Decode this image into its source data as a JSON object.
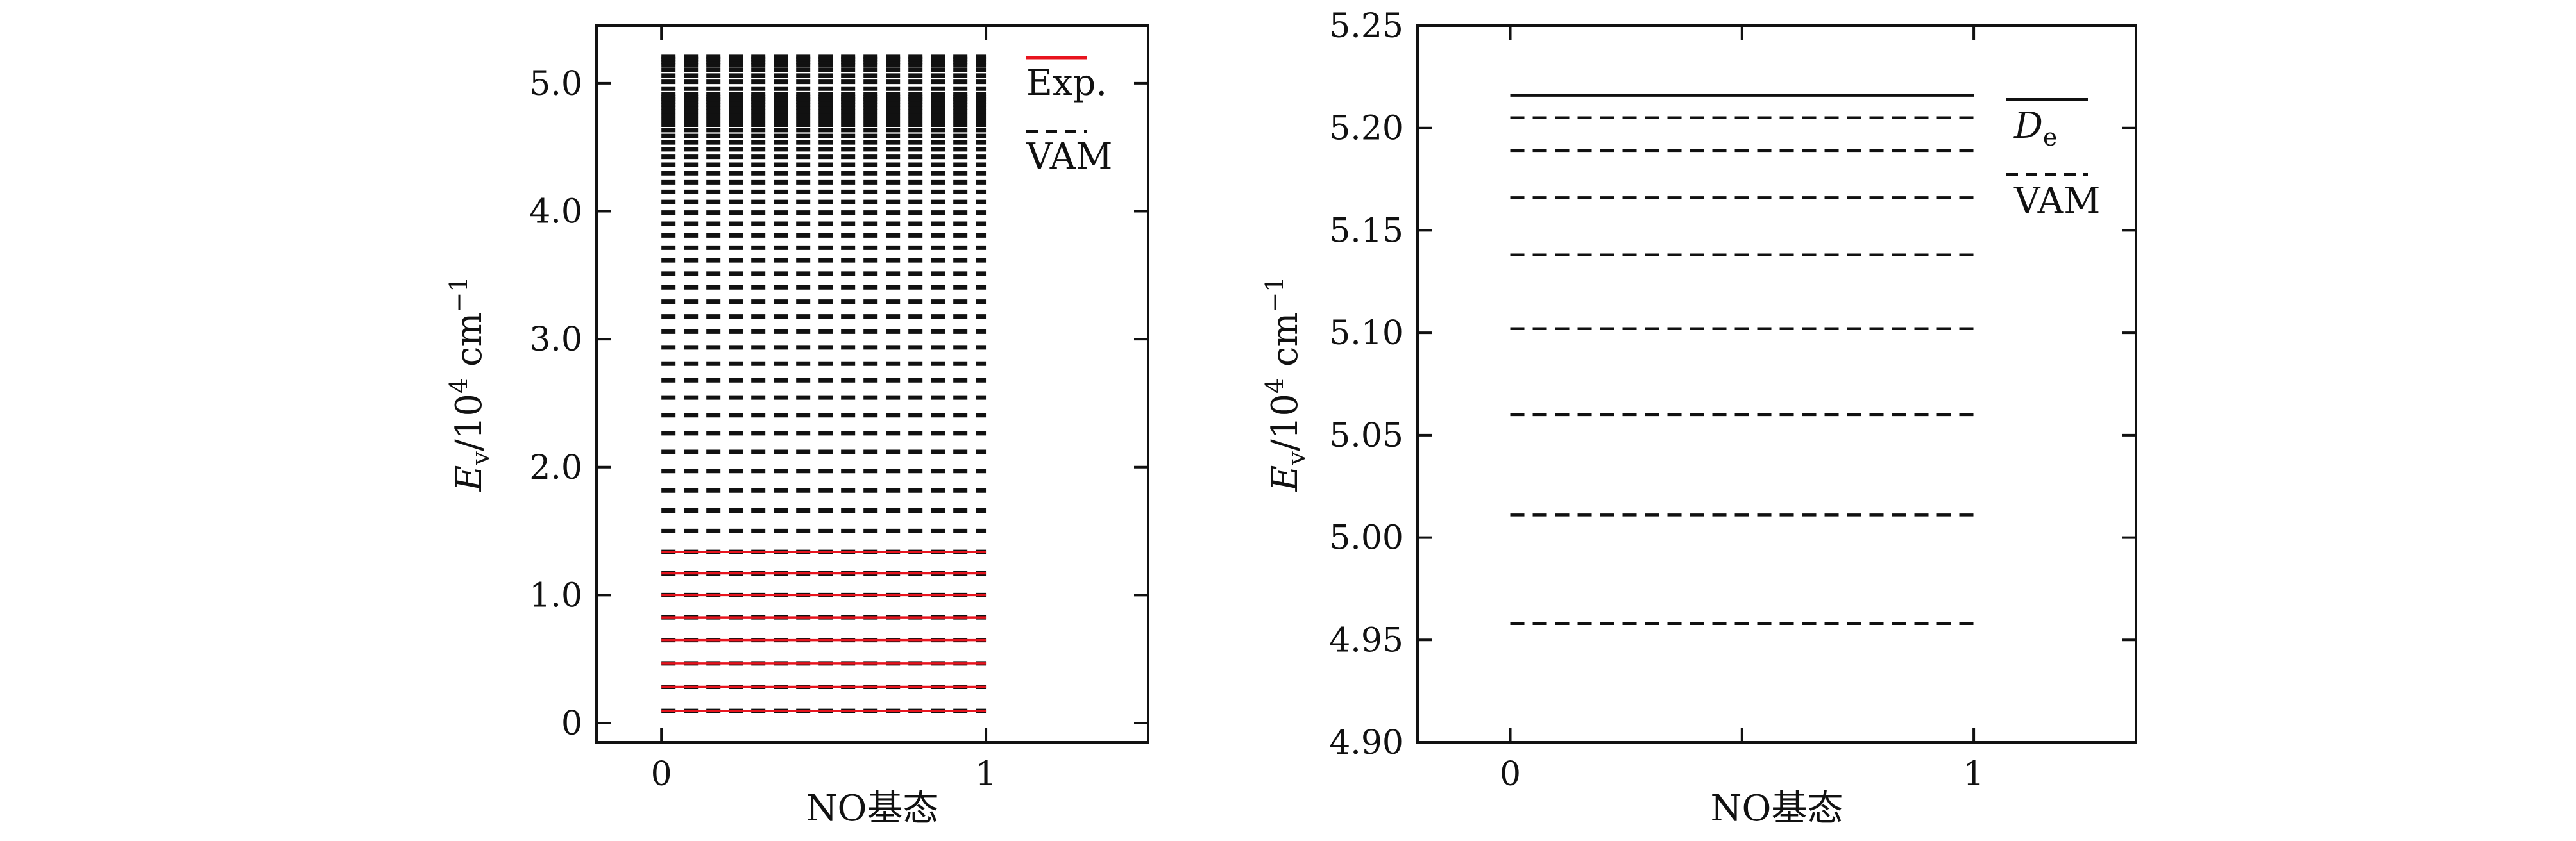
{
  "chart_data": [
    {
      "type": "line",
      "xlabel": "NO基态",
      "ylabel": "Ev/10^4 cm^-1",
      "ylabel_parts": {
        "E": "E",
        "sub": "v",
        "mid": "/10",
        "exp": "4",
        "unit": " cm",
        "unit_exp": "−1"
      },
      "xlim": [
        -0.2,
        1.5
      ],
      "ylim": [
        -0.15,
        5.45
      ],
      "xticks": [
        0,
        1
      ],
      "xtick_labels": [
        "0",
        "1"
      ],
      "yticks": [
        0,
        1,
        2,
        3,
        4,
        5
      ],
      "ytick_labels": [
        "0",
        "1.0",
        "2.0",
        "3.0",
        "4.0",
        "5.0"
      ],
      "legend": [
        {
          "label": "Exp.",
          "color": "#e8141e",
          "style": "solid"
        },
        {
          "label": "VAM",
          "color": "#111111",
          "style": "dashed"
        }
      ],
      "series": [
        {
          "name": "VAM",
          "x": [
            0,
            1
          ],
          "color": "#111111",
          "style": "dashed",
          "levels": [
            0.095,
            0.283,
            0.467,
            0.648,
            0.826,
            1.0,
            1.17,
            1.337,
            1.501,
            1.661,
            1.817,
            1.97,
            2.119,
            2.265,
            2.406,
            2.544,
            2.679,
            2.809,
            2.936,
            3.059,
            3.178,
            3.293,
            3.405,
            3.512,
            3.616,
            3.715,
            3.81,
            3.902,
            3.989,
            4.072,
            4.151,
            4.226,
            4.297,
            4.363,
            4.425,
            4.484,
            4.538,
            4.588,
            4.634,
            4.676,
            4.714,
            4.749,
            4.78,
            4.808,
            4.833,
            4.855,
            4.875,
            4.893,
            4.915,
            4.958,
            5.011,
            5.06,
            5.102,
            5.138,
            5.166,
            5.189,
            5.205
          ]
        },
        {
          "name": "Exp.",
          "x": [
            0,
            1
          ],
          "color": "#e8141e",
          "style": "solid",
          "levels": [
            0.095,
            0.283,
            0.467,
            0.648,
            0.826,
            1.0,
            1.17,
            1.337
          ]
        }
      ]
    },
    {
      "type": "line",
      "xlabel": "NO基态",
      "ylabel": "Ev/10^4 cm^-1",
      "ylabel_parts": {
        "E": "E",
        "sub": "v",
        "mid": "/10",
        "exp": "4",
        "unit": " cm",
        "unit_exp": "−1"
      },
      "xlim": [
        -0.2,
        1.35
      ],
      "ylim": [
        4.9,
        5.25
      ],
      "xticks": [
        0,
        0.5,
        1
      ],
      "xtick_labels": [
        "0",
        "",
        "1"
      ],
      "yticks": [
        4.9,
        4.95,
        5.0,
        5.05,
        5.1,
        5.15,
        5.2,
        5.25
      ],
      "ytick_labels": [
        "4.90",
        "4.95",
        "5.00",
        "5.05",
        "5.10",
        "5.15",
        "5.20",
        "5.25"
      ],
      "legend": [
        {
          "label": "De",
          "label_main": "D",
          "label_sub": "e",
          "color": "#111111",
          "style": "solid"
        },
        {
          "label": "VAM",
          "color": "#111111",
          "style": "dashed"
        }
      ],
      "series": [
        {
          "name": "De",
          "x": [
            0,
            1
          ],
          "color": "#111111",
          "style": "solid",
          "levels": [
            5.216
          ]
        },
        {
          "name": "VAM",
          "x": [
            0,
            1
          ],
          "color": "#111111",
          "style": "dashed",
          "levels": [
            4.958,
            5.011,
            5.06,
            5.102,
            5.138,
            5.166,
            5.189,
            5.205
          ]
        }
      ]
    }
  ]
}
